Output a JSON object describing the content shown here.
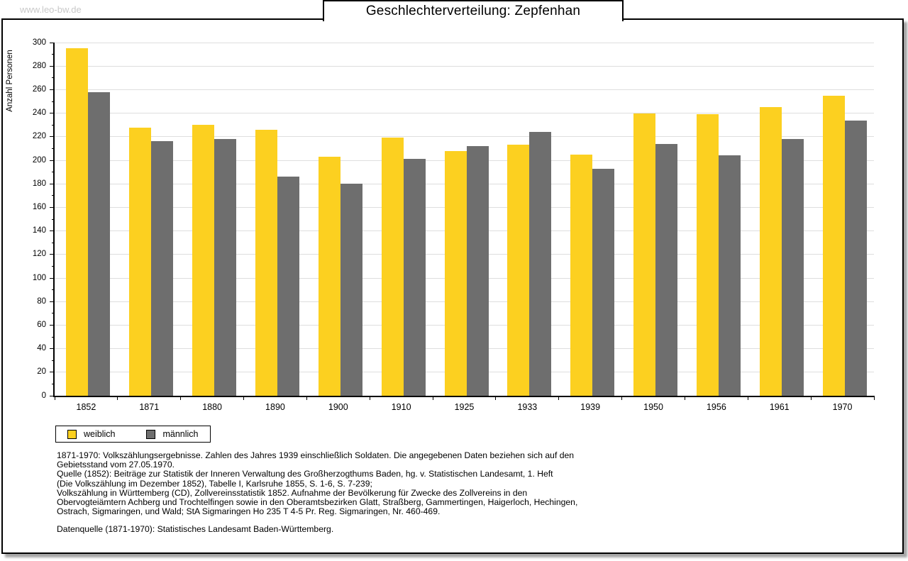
{
  "watermark": "www.leo-bw.de",
  "title": "Geschlechterverteilung: Zepfenhan",
  "chart_data": {
    "type": "bar",
    "title": "Geschlechterverteilung: Zepfenhan",
    "categories": [
      "1852",
      "1871",
      "1880",
      "1890",
      "1900",
      "1910",
      "1925",
      "1933",
      "1939",
      "1950",
      "1956",
      "1961",
      "1970"
    ],
    "series": [
      {
        "name": "weiblich",
        "color": "#FCD020",
        "values": [
          295,
          228,
          230,
          226,
          203,
          219,
          208,
          213,
          205,
          240,
          239,
          245,
          255
        ]
      },
      {
        "name": "männlich",
        "color": "#6E6E6E",
        "values": [
          258,
          216,
          218,
          186,
          180,
          201,
          212,
          224,
          193,
          214,
          204,
          218,
          234
        ]
      }
    ],
    "xlabel": "",
    "ylabel": "Anzahl Personen",
    "ylim": [
      0,
      300
    ],
    "ytick_step": 20,
    "yminor_step": 10,
    "grid": true,
    "legend_position": "bottom-left"
  },
  "source": {
    "lines": [
      "1871-1970: Volkszählungsergebnisse. Zahlen des Jahres 1939 einschließlich Soldaten. Die angegebenen Daten beziehen sich auf den",
      "Gebietsstand vom 27.05.1970.",
      "Quelle (1852): Beiträge zur Statistik der Inneren Verwaltung des Großherzogthums Baden, hg. v. Statistischen Landesamt, 1. Heft",
      "(Die Volkszählung im Dezember 1852), Tabelle I, Karlsruhe 1855, S. 1-6, S. 7-239;",
      "Volkszählung in Württemberg (CD), Zollvereinsstatistik 1852. Aufnahme der Bevölkerung für Zwecke des Zollvereins in den",
      "Obervogteiämtern Achberg und Trochtelfingen sowie in den Oberamtsbezirken Glatt, Straßberg, Gammertingen, Haigerloch, Hechingen,",
      "Ostrach, Sigmaringen, und Wald; StA Sigmaringen Ho 235 T 4-5 Pr. Reg. Sigmaringen, Nr. 460-469."
    ],
    "datenquelle": "Datenquelle (1871-1970): Statistisches Landesamt Baden-Württemberg."
  },
  "colors": {
    "background": "#ffffff",
    "axis": "#000000",
    "grid": "#dedede",
    "watermark": "#c9c9c9",
    "shadow": "#a6a6a6",
    "weiblich": "#FCD020",
    "maennlich": "#6E6E6E"
  }
}
